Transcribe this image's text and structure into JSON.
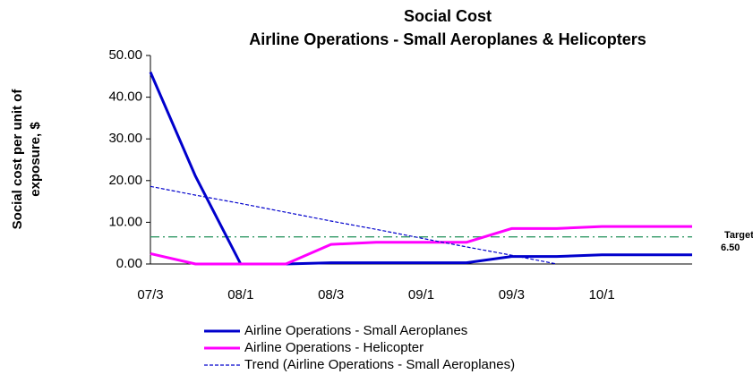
{
  "chart_data": {
    "type": "line",
    "title": [
      "Social Cost",
      "Airline Operations  - Small Aeroplanes & Helicopters"
    ],
    "y_label": [
      "Social cost per unit of",
      "exposure, $"
    ],
    "categories": [
      "07/3",
      null,
      "08/1",
      null,
      "08/3",
      null,
      "09/1",
      null,
      "09/3",
      null,
      "10/1",
      null,
      null
    ],
    "series": [
      {
        "name": "Airline Operations - Small Aeroplanes",
        "color": "#0000cc",
        "style": "solid",
        "values": [
          46,
          21,
          0,
          0,
          0.3,
          0.3,
          0.3,
          0.3,
          1.8,
          1.8,
          2.2,
          2.2,
          2.2
        ]
      },
      {
        "name": "Airline Operations - Helicopter",
        "color": "#ff00ff",
        "style": "solid",
        "values": [
          2.5,
          0,
          0,
          0,
          4.7,
          5.2,
          5.2,
          5.2,
          8.5,
          8.5,
          9,
          9,
          9
        ]
      },
      {
        "name": "Trend (Airline Operations - Small Aeroplanes)",
        "color": "#0000cc",
        "style": "dashed",
        "values": [
          18.6,
          16.5,
          14.5,
          12.4,
          10.3,
          8.3,
          6.2,
          4.1,
          2.1,
          0,
          null,
          null,
          null
        ]
      }
    ],
    "target": {
      "value": 6.5,
      "color": "#339966",
      "label": "Target",
      "value_label": "6.50"
    },
    "ylim": [
      0,
      50
    ],
    "yticks": [
      {
        "value": 0,
        "label": "0.00"
      },
      {
        "value": 10,
        "label": "10.00"
      },
      {
        "value": 20,
        "label": "20.00"
      },
      {
        "value": 30,
        "label": "30.00"
      },
      {
        "value": 40,
        "label": "40.00"
      },
      {
        "value": 50,
        "label": "50.00"
      }
    ]
  }
}
